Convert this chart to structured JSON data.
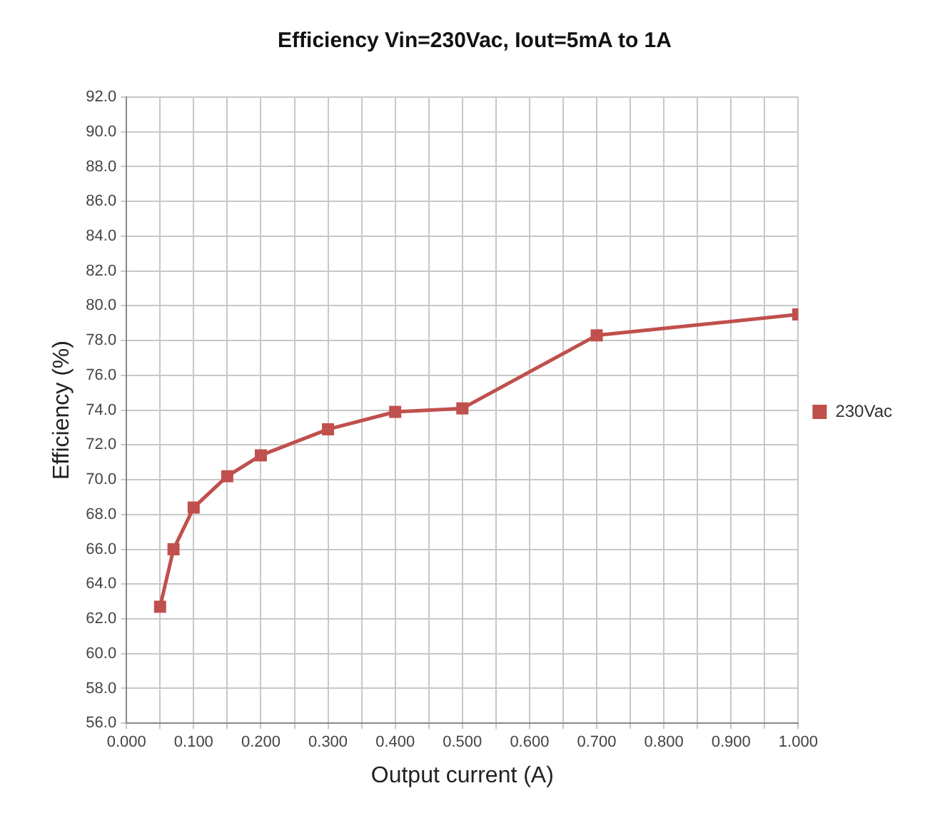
{
  "chart_data": {
    "type": "line",
    "title": "Efficiency Vin=230Vac, Iout=5mA to 1A",
    "xlabel": "Output current (A)",
    "ylabel": "Efficiency (%)",
    "x": [
      0.05,
      0.07,
      0.1,
      0.15,
      0.2,
      0.3,
      0.4,
      0.5,
      0.7,
      1.0
    ],
    "series": [
      {
        "name": "230Vac",
        "color": "#c0504d",
        "values": [
          62.7,
          66.0,
          68.4,
          70.2,
          71.4,
          72.9,
          73.9,
          74.1,
          78.3,
          79.5
        ]
      }
    ],
    "xlim": [
      0,
      1
    ],
    "xticks": [
      {
        "value": 0,
        "label": "0.000"
      },
      {
        "value": 0.05,
        "label": null
      },
      {
        "value": 0.1,
        "label": "0.100"
      },
      {
        "value": 0.15,
        "label": null
      },
      {
        "value": 0.2,
        "label": "0.200"
      },
      {
        "value": 0.25,
        "label": null
      },
      {
        "value": 0.3,
        "label": "0.300"
      },
      {
        "value": 0.35,
        "label": null
      },
      {
        "value": 0.4,
        "label": "0.400"
      },
      {
        "value": 0.45,
        "label": null
      },
      {
        "value": 0.5,
        "label": "0.500"
      },
      {
        "value": 0.55,
        "label": null
      },
      {
        "value": 0.6,
        "label": "0.600"
      },
      {
        "value": 0.65,
        "label": null
      },
      {
        "value": 0.7,
        "label": "0.700"
      },
      {
        "value": 0.75,
        "label": null
      },
      {
        "value": 0.8,
        "label": "0.800"
      },
      {
        "value": 0.85,
        "label": null
      },
      {
        "value": 0.9,
        "label": "0.900"
      },
      {
        "value": 0.95,
        "label": null
      },
      {
        "value": 1,
        "label": "1.000"
      }
    ],
    "ylim": [
      56,
      92
    ],
    "yticks": [
      {
        "value": 56,
        "label": "56.0"
      },
      {
        "value": 58,
        "label": "58.0"
      },
      {
        "value": 60,
        "label": "60.0"
      },
      {
        "value": 62,
        "label": "62.0"
      },
      {
        "value": 64,
        "label": "64.0"
      },
      {
        "value": 66,
        "label": "66.0"
      },
      {
        "value": 68,
        "label": "68.0"
      },
      {
        "value": 70,
        "label": "70.0"
      },
      {
        "value": 72,
        "label": "72.0"
      },
      {
        "value": 74,
        "label": "74.0"
      },
      {
        "value": 76,
        "label": "76.0"
      },
      {
        "value": 78,
        "label": "78.0"
      },
      {
        "value": 80,
        "label": "80.0"
      },
      {
        "value": 82,
        "label": "82.0"
      },
      {
        "value": 84,
        "label": "84.0"
      },
      {
        "value": 86,
        "label": "86.0"
      },
      {
        "value": 88,
        "label": "88.0"
      },
      {
        "value": 90,
        "label": "90.0"
      },
      {
        "value": 92,
        "label": "92.0"
      }
    ],
    "grid": true,
    "legend": "right",
    "marker": "square",
    "line_style": "solid"
  }
}
